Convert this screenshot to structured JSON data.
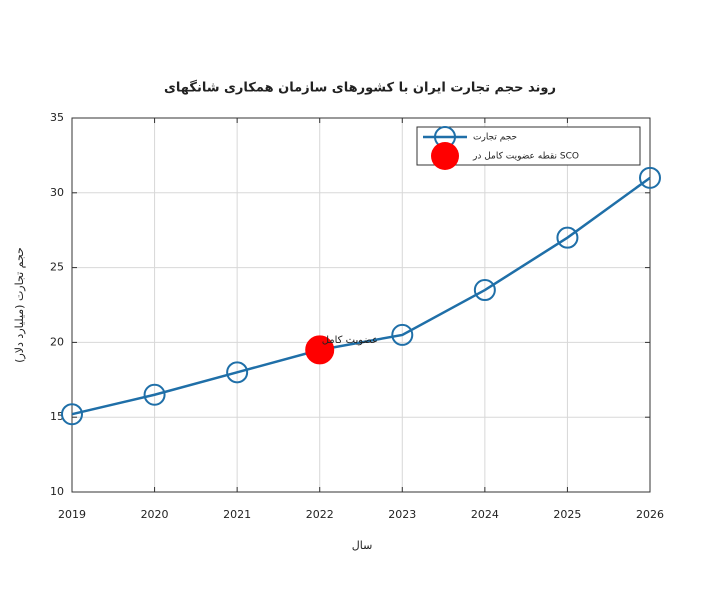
{
  "chart_data": {
    "type": "line",
    "title": "روند حجم تجارت ایران با کشورهای سازمان همکاری شانگهای",
    "xlabel": "سال",
    "ylabel": "حجم تجارت (میلیارد دلار)",
    "x": [
      2019,
      2020,
      2021,
      2022,
      2023,
      2024,
      2025,
      2026
    ],
    "xlim": [
      2019,
      2026
    ],
    "xticks": [
      2019,
      2020,
      2021,
      2022,
      2023,
      2024,
      2025,
      2026
    ],
    "ylim": [
      10,
      35
    ],
    "yticks": [
      10,
      15,
      20,
      25,
      30,
      35
    ],
    "grid": true,
    "legend": "upper right",
    "series": [
      {
        "name": "حجم تجارت",
        "color": "#1f6fa8",
        "values": [
          15.2,
          16.5,
          18,
          19.5,
          20.5,
          23.5,
          27,
          31
        ]
      },
      {
        "name": "نقطه عضویت کامل در SCO",
        "color": "#ff0000",
        "x": [
          2022
        ],
        "values": [
          19.5
        ]
      }
    ],
    "annotations": [
      {
        "text": "عضویت کامل",
        "x": 2022,
        "y": 19.5
      }
    ]
  }
}
